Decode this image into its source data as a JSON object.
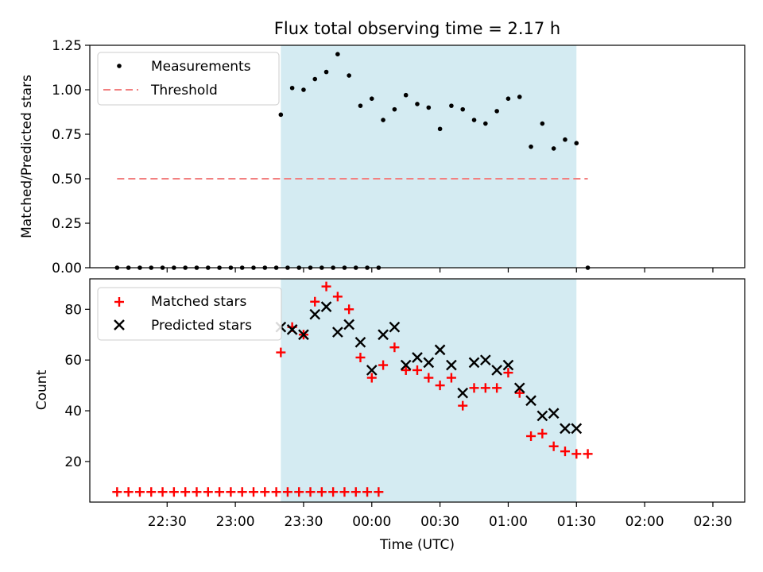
{
  "figure": {
    "title": "Flux total observing time = 2.17 h"
  },
  "chart_data": [
    {
      "type": "scatter",
      "panel": "top",
      "ylabel": "Matched/Predicted stars",
      "xlabel": "",
      "x_range_minutes": [
        -64,
        224
      ],
      "ylim": [
        0,
        1.25
      ],
      "yticks": [
        "0.00",
        "0.25",
        "0.50",
        "0.75",
        "1.00",
        "1.25"
      ],
      "yticks_values": [
        0,
        0.25,
        0.5,
        0.75,
        1.0,
        1.25
      ],
      "shaded_region_minutes": [
        20,
        150
      ],
      "shaded_color": "#d4ebf2",
      "threshold": {
        "name": "Threshold",
        "value": 0.5,
        "x_start": -52,
        "x_end": 155,
        "color": "#f28080",
        "style": "dashed"
      },
      "legend": {
        "placement": "top-left",
        "entries": [
          "Measurements",
          "Threshold"
        ]
      },
      "series": [
        {
          "name": "Measurements",
          "marker": "dot",
          "color": "#000000",
          "points": [
            [
              -52,
              0
            ],
            [
              -47,
              0
            ],
            [
              -42,
              0
            ],
            [
              -37,
              0
            ],
            [
              -32,
              0
            ],
            [
              -27,
              0
            ],
            [
              -22,
              0
            ],
            [
              -17,
              0
            ],
            [
              -12,
              0
            ],
            [
              -7,
              0
            ],
            [
              -2,
              0
            ],
            [
              3,
              0
            ],
            [
              8,
              0
            ],
            [
              13,
              0
            ],
            [
              18,
              0
            ],
            [
              23,
              0
            ],
            [
              28,
              0
            ],
            [
              33,
              0
            ],
            [
              38,
              0
            ],
            [
              43,
              0
            ],
            [
              48,
              0
            ],
            [
              53,
              0
            ],
            [
              58,
              0
            ],
            [
              63,
              0
            ],
            [
              20,
              0.86
            ],
            [
              25,
              1.01
            ],
            [
              30,
              1.0
            ],
            [
              35,
              1.06
            ],
            [
              40,
              1.1
            ],
            [
              45,
              1.2
            ],
            [
              50,
              1.08
            ],
            [
              55,
              0.91
            ],
            [
              60,
              0.95
            ],
            [
              65,
              0.83
            ],
            [
              70,
              0.89
            ],
            [
              75,
              0.97
            ],
            [
              80,
              0.92
            ],
            [
              85,
              0.9
            ],
            [
              90,
              0.78
            ],
            [
              95,
              0.91
            ],
            [
              100,
              0.89
            ],
            [
              105,
              0.83
            ],
            [
              110,
              0.81
            ],
            [
              115,
              0.88
            ],
            [
              120,
              0.95
            ],
            [
              125,
              0.96
            ],
            [
              130,
              0.68
            ],
            [
              135,
              0.81
            ],
            [
              140,
              0.67
            ],
            [
              145,
              0.72
            ],
            [
              150,
              0.7
            ],
            [
              155,
              0
            ]
          ]
        }
      ]
    },
    {
      "type": "scatter",
      "panel": "bottom",
      "ylabel": "Count",
      "xlabel": "Time (UTC)",
      "x_range_minutes": [
        -64,
        224
      ],
      "ylim": [
        4,
        92
      ],
      "yticks": [
        "20",
        "40",
        "60",
        "80"
      ],
      "yticks_values": [
        20,
        40,
        60,
        80
      ],
      "xticks": [
        "22:30",
        "23:00",
        "23:30",
        "00:00",
        "00:30",
        "01:00",
        "01:30",
        "02:00",
        "02:30"
      ],
      "xticks_minutes": [
        -30,
        0,
        30,
        60,
        90,
        120,
        150,
        180,
        210
      ],
      "shaded_region_minutes": [
        20,
        150
      ],
      "shaded_color": "#d4ebf2",
      "legend": {
        "placement": "top-left",
        "entries": [
          "Matched stars",
          "Predicted stars"
        ]
      },
      "series": [
        {
          "name": "Matched stars",
          "marker": "plus",
          "color": "#ff0000",
          "points": [
            [
              -52,
              8
            ],
            [
              -47,
              8
            ],
            [
              -42,
              8
            ],
            [
              -37,
              8
            ],
            [
              -32,
              8
            ],
            [
              -27,
              8
            ],
            [
              -22,
              8
            ],
            [
              -17,
              8
            ],
            [
              -12,
              8
            ],
            [
              -7,
              8
            ],
            [
              -2,
              8
            ],
            [
              3,
              8
            ],
            [
              8,
              8
            ],
            [
              13,
              8
            ],
            [
              18,
              8
            ],
            [
              23,
              8
            ],
            [
              28,
              8
            ],
            [
              33,
              8
            ],
            [
              38,
              8
            ],
            [
              43,
              8
            ],
            [
              48,
              8
            ],
            [
              53,
              8
            ],
            [
              58,
              8
            ],
            [
              63,
              8
            ],
            [
              20,
              63
            ],
            [
              25,
              73
            ],
            [
              30,
              70
            ],
            [
              35,
              83
            ],
            [
              40,
              89
            ],
            [
              45,
              85
            ],
            [
              50,
              80
            ],
            [
              55,
              61
            ],
            [
              60,
              53
            ],
            [
              65,
              58
            ],
            [
              70,
              65
            ],
            [
              75,
              56
            ],
            [
              80,
              56
            ],
            [
              85,
              53
            ],
            [
              90,
              50
            ],
            [
              95,
              53
            ],
            [
              100,
              42
            ],
            [
              105,
              49
            ],
            [
              110,
              49
            ],
            [
              115,
              49
            ],
            [
              120,
              55
            ],
            [
              125,
              47
            ],
            [
              130,
              30
            ],
            [
              135,
              31
            ],
            [
              140,
              26
            ],
            [
              145,
              24
            ],
            [
              150,
              23
            ],
            [
              155,
              23
            ]
          ]
        },
        {
          "name": "Predicted stars",
          "marker": "x",
          "color": "#000000",
          "points": [
            [
              20,
              73
            ],
            [
              25,
              72
            ],
            [
              30,
              70
            ],
            [
              35,
              78
            ],
            [
              40,
              81
            ],
            [
              45,
              71
            ],
            [
              50,
              74
            ],
            [
              55,
              67
            ],
            [
              60,
              56
            ],
            [
              65,
              70
            ],
            [
              70,
              73
            ],
            [
              75,
              58
            ],
            [
              80,
              61
            ],
            [
              85,
              59
            ],
            [
              90,
              64
            ],
            [
              95,
              58
            ],
            [
              100,
              47
            ],
            [
              105,
              59
            ],
            [
              110,
              60
            ],
            [
              115,
              56
            ],
            [
              120,
              58
            ],
            [
              125,
              49
            ],
            [
              130,
              44
            ],
            [
              135,
              38
            ],
            [
              140,
              39
            ],
            [
              145,
              33
            ],
            [
              150,
              33
            ]
          ]
        }
      ]
    }
  ]
}
